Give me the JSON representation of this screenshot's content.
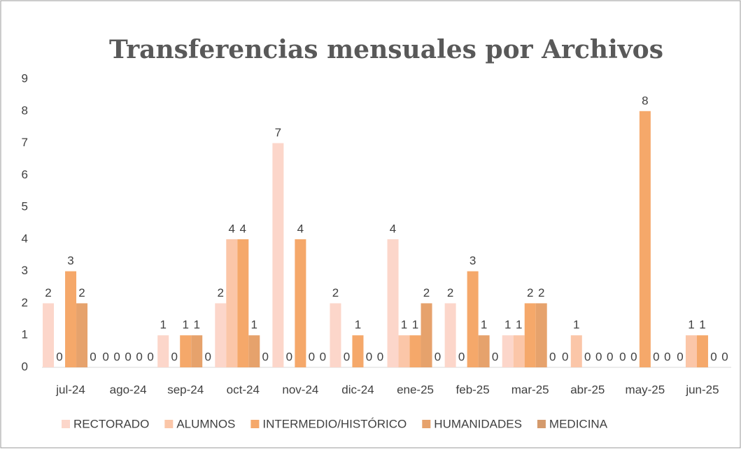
{
  "chart_data": {
    "type": "bar",
    "title": "Transferencias mensuales por  Archivos",
    "categories": [
      "jul-24",
      "ago-24",
      "sep-24",
      "oct-24",
      "nov-24",
      "dic-24",
      "ene-25",
      "feb-25",
      "mar-25",
      "abr-25",
      "may-25",
      "jun-25"
    ],
    "series": [
      {
        "name": "RECTORADO",
        "color": "#fcd6ca",
        "values": [
          2,
          0,
          1,
          2,
          7,
          2,
          4,
          2,
          1,
          0,
          0,
          0
        ]
      },
      {
        "name": "ALUMNOS",
        "color": "#fbc6a8",
        "values": [
          0,
          0,
          0,
          4,
          0,
          0,
          1,
          0,
          1,
          1,
          0,
          1
        ]
      },
      {
        "name": "INTERMEDIO/HISTÓRICO",
        "color": "#f5a86a",
        "values": [
          3,
          0,
          1,
          4,
          4,
          1,
          1,
          3,
          2,
          0,
          8,
          1
        ]
      },
      {
        "name": "HUMANIDADES",
        "color": "#e6a26c",
        "values": [
          2,
          0,
          1,
          1,
          0,
          0,
          2,
          1,
          2,
          0,
          0,
          0
        ]
      },
      {
        "name": "MEDICINA",
        "color": "#d49a6c",
        "values": [
          0,
          0,
          0,
          0,
          0,
          0,
          0,
          0,
          0,
          0,
          0,
          0
        ]
      }
    ],
    "ylim": [
      0,
      9
    ],
    "yticks": [
      0,
      1,
      2,
      3,
      4,
      5,
      6,
      7,
      8,
      9
    ],
    "legend": "bottom"
  }
}
